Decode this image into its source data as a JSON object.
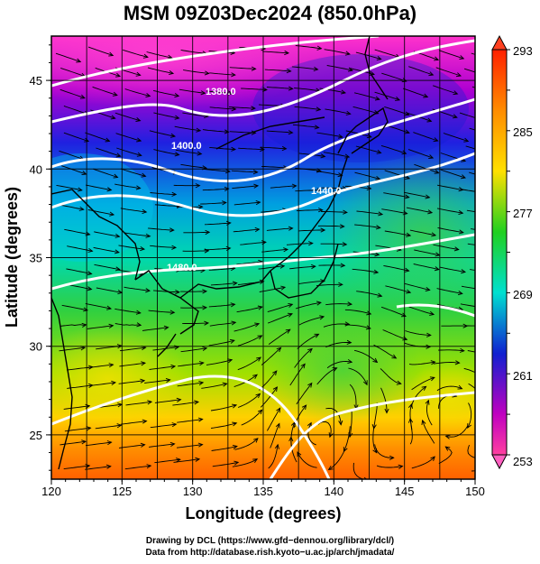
{
  "title": "MSM 09Z03Dec2024 (850.0hPa)",
  "axes": {
    "xlabel": "Longitude (degrees)",
    "ylabel": "Latitude  (degrees)",
    "lon_range": [
      120,
      150
    ],
    "lat_range": [
      22.5,
      47.5
    ],
    "x_ticks": [
      "120",
      "125",
      "130",
      "135",
      "140",
      "145",
      "150"
    ],
    "y_ticks": [
      "25",
      "30",
      "35",
      "40",
      "45"
    ]
  },
  "colorbar": {
    "min": 253,
    "max": 293,
    "labels": [
      "293",
      "285",
      "277",
      "269",
      "261",
      "253"
    ],
    "colors": [
      "#ff0000",
      "#ff8c00",
      "#ffff00",
      "#00e000",
      "#00e0e0",
      "#0000cc",
      "#cc00cc",
      "#ff3399"
    ]
  },
  "contours": {
    "color": "#ffffff",
    "labels": [
      "1380.0",
      "1400.0",
      "1440.0",
      "1480.0"
    ]
  },
  "credits": {
    "line1": "Drawing by DCL (https://www.gfd−dennou.org/library/dcl/)",
    "line2": "Data from http://database.rish.kyoto−u.ac.jp/arch/jmadata/"
  }
}
